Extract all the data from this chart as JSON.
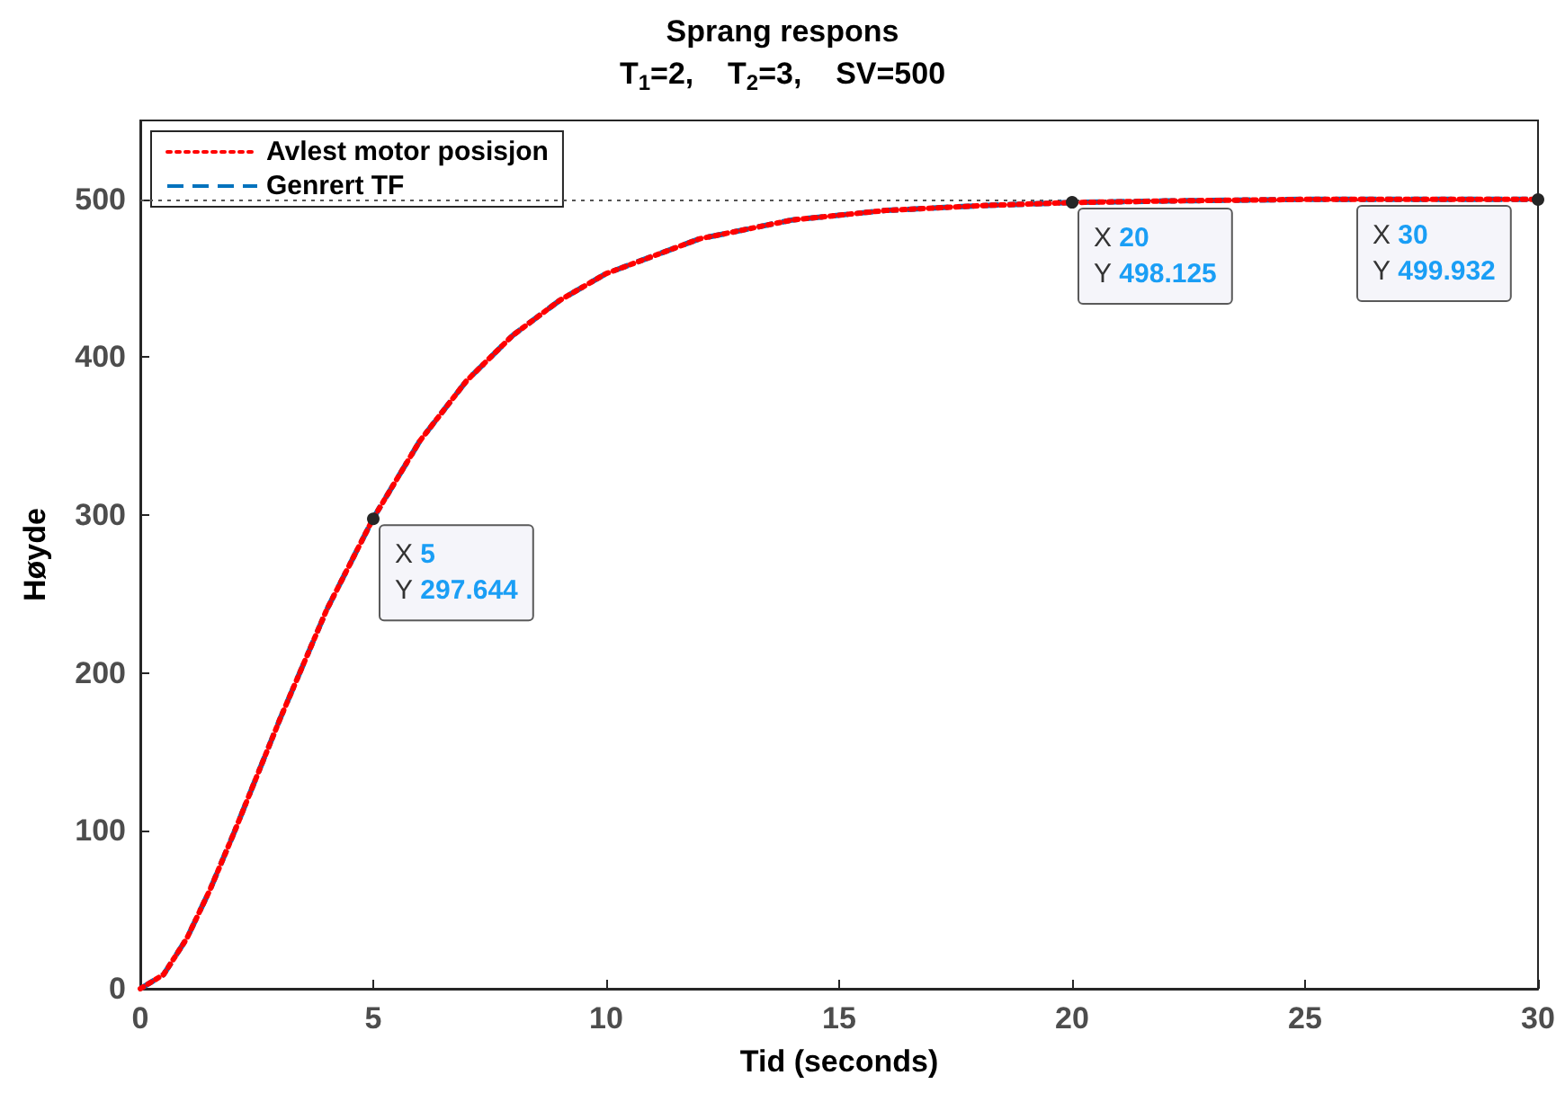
{
  "chart_data": {
    "type": "line",
    "title": "Sprang respons",
    "subtitle": "T$_{1}$=2,    T$_{2}$=3,    SV=500",
    "xlabel": "Tid (seconds)",
    "ylabel": "Høyde",
    "x": [
      0,
      0.5,
      1,
      1.5,
      2,
      3,
      4,
      5,
      6,
      7,
      8,
      9,
      10,
      12,
      14,
      16,
      18,
      20,
      22,
      25,
      30
    ],
    "series": [
      {
        "name": "Avlest motor posisjon",
        "color": "#ff0000",
        "line_style": "dotted",
        "values": [
          0,
          9,
          32,
          63,
          98,
          171,
          240,
          298,
          347,
          385,
          414,
          436,
          453,
          475,
          487,
          493,
          496,
          498,
          499,
          500,
          500
        ]
      },
      {
        "name": "Genrert TF",
        "color": "#0072bd",
        "line_style": "dashed",
        "values": [
          0,
          9,
          32,
          63,
          98,
          171,
          240,
          298,
          347,
          385,
          414,
          436,
          453,
          475,
          487,
          493,
          496,
          498,
          499,
          500,
          500
        ]
      }
    ],
    "xlim": [
      0,
      30
    ],
    "xticks": [
      0,
      5,
      10,
      15,
      20,
      25,
      30
    ],
    "ylim": [
      0,
      550
    ],
    "yticks": [
      0,
      100,
      200,
      300,
      400,
      500
    ],
    "ref_lines": [
      {
        "axis": "y",
        "value": 500,
        "label": null,
        "color": "#555555",
        "line_style": "dotted"
      }
    ],
    "annotations": [
      {
        "text": "X 5\nY 297.644",
        "x": 5,
        "y": 297.644
      },
      {
        "text": "X 20\nY 498.125",
        "x": 20,
        "y": 498.125
      },
      {
        "text": "X 30\nY 499.932",
        "x": 30,
        "y": 499.932
      }
    ],
    "grid": false,
    "legend": "top left",
    "marker": "none"
  }
}
